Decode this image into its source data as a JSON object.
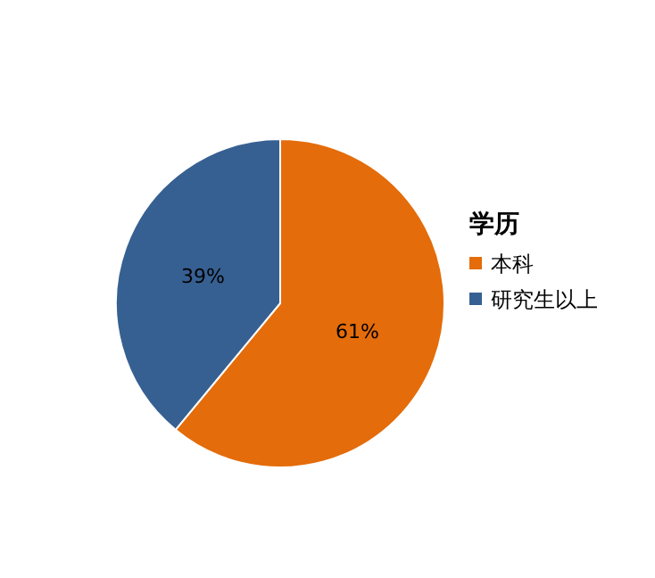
{
  "chart_data": {
    "type": "pie",
    "legend_title": "学历",
    "categories": [
      "本科",
      "研究生以上"
    ],
    "values": [
      61,
      39
    ],
    "value_labels": [
      "61%",
      "39%"
    ],
    "colors": [
      "#e46c0a",
      "#376092"
    ],
    "legend": "right"
  }
}
